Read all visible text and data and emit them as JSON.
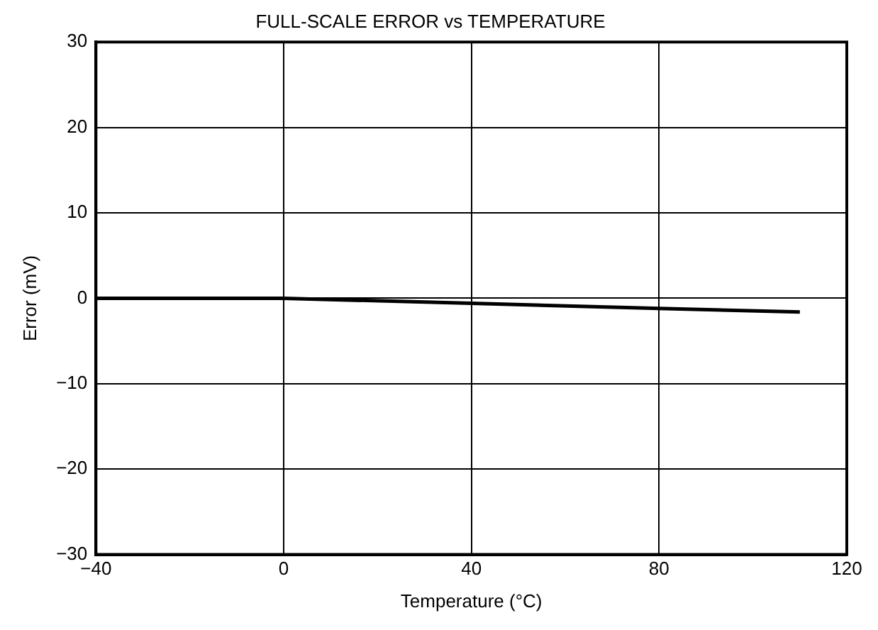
{
  "chart_data": {
    "type": "line",
    "title": "FULL-SCALE ERROR vs TEMPERATURE",
    "xlabel": "Temperature (°C)",
    "ylabel": "Error (mV)",
    "x": [
      -40,
      0,
      40,
      80,
      110
    ],
    "series": [
      {
        "color": "#000000",
        "values": [
          0,
          0,
          -0.6,
          -1.2,
          -1.6
        ]
      }
    ],
    "xlim": [
      -40,
      120
    ],
    "xticks": [
      {
        "value": -40,
        "label": "−40"
      },
      0,
      40,
      80,
      120
    ],
    "ylim": [
      -30,
      30
    ],
    "yticks": [
      {
        "value": -30,
        "label": "−30"
      },
      {
        "value": -20,
        "label": "−20"
      },
      {
        "value": -10,
        "label": "−10"
      },
      0,
      10,
      20,
      30
    ],
    "grid": true,
    "legend": false,
    "marker": "none",
    "line_style": "solid"
  }
}
